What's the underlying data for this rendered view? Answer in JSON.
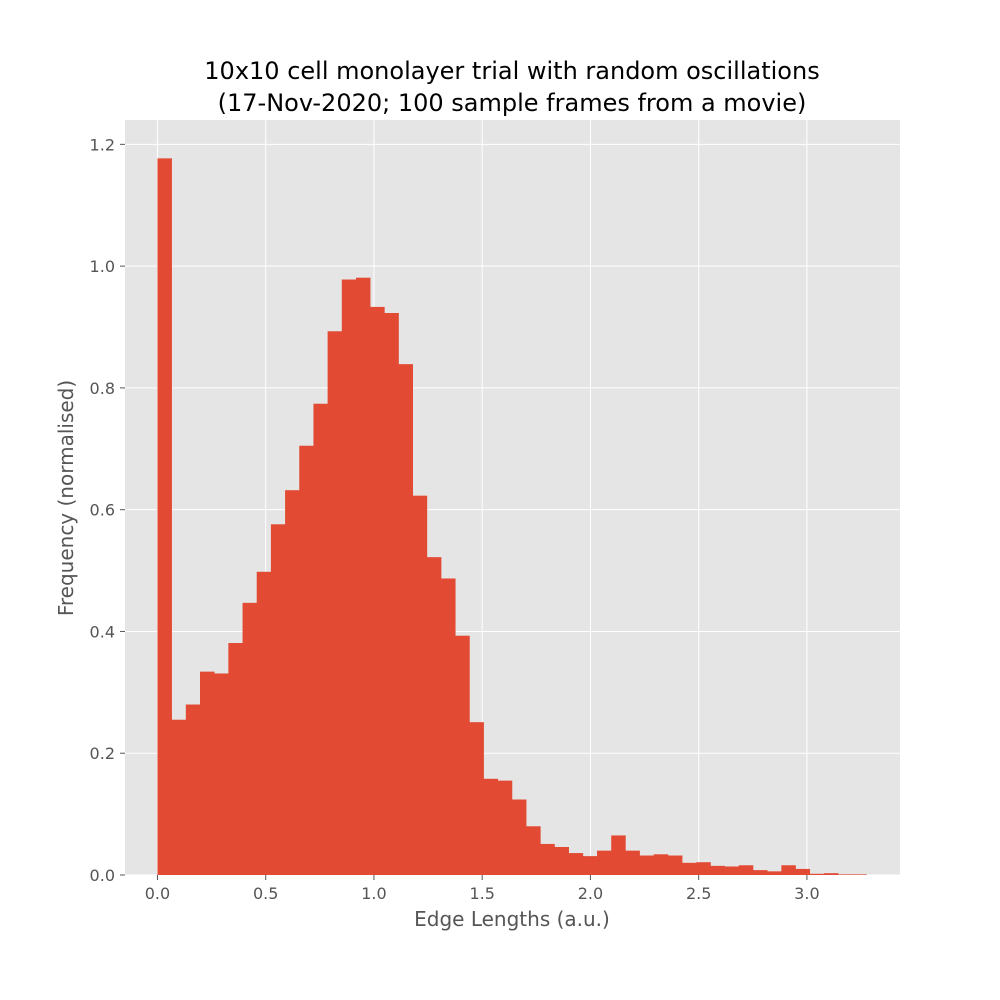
{
  "chart_data": {
    "type": "bar",
    "title_line1": "10x10 cell monolayer trial with random oscillations",
    "title_line2": "(17-Nov-2020; 100 sample frames from a movie)",
    "xlabel": "Edge Lengths (a.u.)",
    "ylabel": "Frequency (normalised)",
    "xlim": [
      -0.15,
      3.43
    ],
    "ylim": [
      0,
      1.24
    ],
    "xticks": [
      0.0,
      0.5,
      1.0,
      1.5,
      2.0,
      2.5,
      3.0
    ],
    "xtick_labels": [
      "0.0",
      "0.5",
      "1.0",
      "1.5",
      "2.0",
      "2.5",
      "3.0"
    ],
    "yticks": [
      0.0,
      0.2,
      0.4,
      0.6,
      0.8,
      1.0,
      1.2
    ],
    "ytick_labels": [
      "0.0",
      "0.2",
      "0.4",
      "0.6",
      "0.8",
      "1.0",
      "1.2"
    ],
    "grid": true,
    "bar_color": "#E24A33",
    "background_color": "#E5E5E5",
    "grid_color": "#FFFFFF",
    "bin_start": 0.0,
    "bin_width": 0.0655,
    "values": [
      1.177,
      0.255,
      0.28,
      0.334,
      0.331,
      0.381,
      0.447,
      0.498,
      0.576,
      0.632,
      0.705,
      0.774,
      0.893,
      0.978,
      0.981,
      0.933,
      0.923,
      0.839,
      0.623,
      0.522,
      0.487,
      0.393,
      0.251,
      0.158,
      0.155,
      0.124,
      0.08,
      0.051,
      0.046,
      0.036,
      0.031,
      0.04,
      0.065,
      0.04,
      0.032,
      0.034,
      0.032,
      0.02,
      0.021,
      0.015,
      0.014,
      0.016,
      0.008,
      0.006,
      0.016,
      0.01,
      0.002,
      0.003,
      0.001,
      0.001
    ]
  }
}
